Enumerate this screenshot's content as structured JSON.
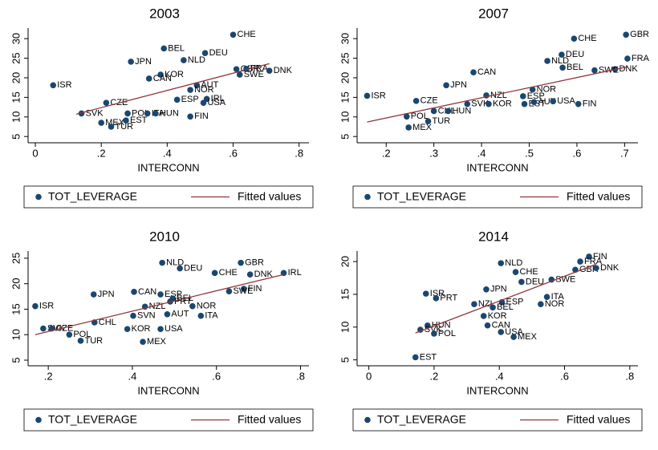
{
  "chart_data": [
    {
      "type": "scatter",
      "title": "2003",
      "xlabel": "INTERCONN",
      "xlim": [
        -0.022,
        0.83
      ],
      "ylim": [
        3.4,
        32.7
      ],
      "xticks": [
        0,
        {
          "value": 0.2,
          "label": ".2"
        },
        {
          "value": 0.4,
          "label": ".4"
        },
        {
          "value": 0.6,
          "label": ".6"
        },
        {
          "value": 0.8,
          "label": ".8"
        }
      ],
      "yticks": [
        5,
        10,
        15,
        20,
        25,
        30
      ],
      "series": [
        {
          "name": "TOT_LEVERAGE",
          "color": "#1a476f",
          "labels": [
            "CHE",
            "BEL",
            "DEU",
            "NLD",
            "JPN",
            "GBR",
            "FRA",
            "DNK",
            "SWE",
            "ISR",
            "KOR",
            "CAN",
            "AUT",
            "NOR",
            "CZE",
            "ESP",
            "IRL",
            "USA",
            "SVK",
            "POL",
            "ITA",
            "HUN",
            "EST",
            "MEX",
            "TUR",
            "FIN"
          ],
          "x": [
            0.6,
            0.39,
            0.515,
            0.45,
            0.29,
            0.61,
            0.64,
            0.71,
            0.62,
            0.054,
            0.38,
            0.345,
            0.49,
            0.47,
            0.215,
            0.43,
            0.52,
            0.51,
            0.14,
            0.28,
            0.34,
            0.365,
            0.275,
            0.2,
            0.23,
            0.47
          ],
          "values": [
            31.0,
            27.5,
            26.3,
            24.5,
            24.1,
            22.2,
            22.3,
            21.8,
            20.8,
            18.1,
            20.8,
            19.8,
            18.1,
            16.9,
            13.6,
            14.4,
            14.6,
            13.6,
            10.9,
            10.9,
            10.9,
            10.9,
            9.1,
            8.5,
            7.5,
            10.1
          ]
        },
        {
          "name": "Fitted values",
          "color": "#90353b",
          "x": [
            0.124,
            0.71
          ],
          "values": [
            10.7,
            23.6
          ]
        }
      ]
    },
    {
      "type": "scatter",
      "title": "2007",
      "xlabel": "INTERCONN",
      "xlim": [
        0.139,
        0.728
      ],
      "ylim": [
        3.4,
        32.7
      ],
      "xticks": [
        {
          "value": 0.2,
          "label": ".2"
        },
        {
          "value": 0.3,
          "label": ".3"
        },
        {
          "value": 0.4,
          "label": ".4"
        },
        {
          "value": 0.5,
          "label": ".5"
        },
        {
          "value": 0.6,
          "label": ".6"
        },
        {
          "value": 0.7,
          "label": ".7"
        }
      ],
      "yticks": [
        5,
        10,
        15,
        20,
        25,
        30
      ],
      "series": [
        {
          "name": "TOT_LEVERAGE",
          "color": "#1a476f",
          "labels": [
            "GBR",
            "CHE",
            "DEU",
            "NLD",
            "BEL",
            "FRA",
            "DNK",
            "SWE",
            "CAN",
            "JPN",
            "ISR",
            "NOR",
            "NZL",
            "ESP",
            "CZE",
            "SVK",
            "KOR",
            "EST",
            "AUT",
            "USA",
            "FIN",
            "CHL",
            "HUN",
            "POL",
            "TUR",
            "MEX"
          ],
          "x": [
            0.703,
            0.594,
            0.568,
            0.538,
            0.57,
            0.706,
            0.68,
            0.637,
            0.383,
            0.326,
            0.16,
            0.507,
            0.41,
            0.487,
            0.263,
            0.37,
            0.415,
            0.49,
            0.51,
            0.55,
            0.603,
            0.3,
            0.33,
            0.243,
            0.288,
            0.247
          ],
          "values": [
            31.0,
            30.0,
            25.9,
            24.3,
            22.6,
            24.9,
            22.2,
            21.9,
            21.4,
            18.1,
            15.4,
            17.0,
            15.5,
            15.3,
            14.1,
            13.3,
            13.3,
            13.3,
            13.8,
            14.0,
            13.3,
            11.5,
            11.5,
            10.1,
            8.9,
            7.3
          ]
        },
        {
          "name": "Fitted values",
          "color": "#90353b",
          "x": [
            0.16,
            0.706
          ],
          "values": [
            8.7,
            22.8
          ]
        }
      ]
    },
    {
      "type": "scatter",
      "title": "2010",
      "xlabel": "INTERCONN",
      "xlim": [
        0.152,
        0.82
      ],
      "ylim": [
        3.9,
        26.4
      ],
      "xticks": [
        {
          "value": 0.2,
          "label": ".2"
        },
        {
          "value": 0.4,
          "label": ".4"
        },
        {
          "value": 0.6,
          "label": ".6"
        },
        {
          "value": 0.8,
          "label": ".8"
        }
      ],
      "yticks": [
        5,
        10,
        15,
        20,
        25
      ],
      "series": [
        {
          "name": "TOT_LEVERAGE",
          "color": "#1a476f",
          "labels": [
            "NLD",
            "GBR",
            "DEU",
            "CHE",
            "DNK",
            "IRL",
            "FIN",
            "SWE",
            "ISR",
            "JPN",
            "CAN",
            "ESP",
            "BEL",
            "PRT",
            "NZL",
            "NOR",
            "SVN",
            "AUT",
            "ITA",
            "CHL",
            "SVK",
            "CZE",
            "POL",
            "KOR",
            "USA",
            "TUR",
            "MEX"
          ],
          "x": [
            0.471,
            0.658,
            0.513,
            0.596,
            0.68,
            0.76,
            0.665,
            0.63,
            0.169,
            0.308,
            0.404,
            0.467,
            0.496,
            0.49,
            0.43,
            0.543,
            0.402,
            0.483,
            0.563,
            0.31,
            0.188,
            0.208,
            0.25,
            0.388,
            0.467,
            0.277,
            0.425
          ],
          "values": [
            24.1,
            24.1,
            23.0,
            22.1,
            21.8,
            22.1,
            19.0,
            18.5,
            15.6,
            17.9,
            18.4,
            17.9,
            17.1,
            16.5,
            15.5,
            15.6,
            13.7,
            14.0,
            13.7,
            12.4,
            11.2,
            11.2,
            10.0,
            11.1,
            11.1,
            8.8,
            8.6
          ]
        },
        {
          "name": "Fitted values",
          "color": "#90353b",
          "x": [
            0.169,
            0.76
          ],
          "values": [
            10.0,
            21.8
          ]
        }
      ]
    },
    {
      "type": "scatter",
      "title": "2014",
      "xlabel": "INTERCONN",
      "xlim": [
        -0.036,
        0.825
      ],
      "ylim": [
        4.1,
        21.6
      ],
      "xticks": [
        0,
        {
          "value": 0.2,
          "label": ".2"
        },
        {
          "value": 0.4,
          "label": ".4"
        },
        {
          "value": 0.6,
          "label": ".6"
        },
        {
          "value": 0.8,
          "label": ".8"
        }
      ],
      "yticks": [
        5,
        10,
        15,
        20
      ],
      "series": [
        {
          "name": "TOT_LEVERAGE",
          "color": "#1a476f",
          "labels": [
            "FIN",
            "FRA",
            "GBR",
            "DNK",
            "NLD",
            "CHE",
            "DEU",
            "SWE",
            "JPN",
            "ISR",
            "PRT",
            "NZL",
            "ESP",
            "BEL",
            "ITA",
            "NOR",
            "KOR",
            "CAN",
            "HUN",
            "SVK",
            "POL",
            "USA",
            "MEX",
            "EST"
          ],
          "x": [
            0.675,
            0.648,
            0.633,
            0.697,
            0.405,
            0.45,
            0.468,
            0.56,
            0.36,
            0.175,
            0.206,
            0.323,
            0.408,
            0.38,
            0.546,
            0.527,
            0.352,
            0.364,
            0.18,
            0.158,
            0.2,
            0.405,
            0.444,
            0.143
          ],
          "values": [
            20.75,
            20.0,
            18.75,
            19.0,
            19.75,
            18.4,
            16.9,
            17.25,
            15.75,
            15.1,
            14.4,
            13.5,
            13.8,
            13.0,
            14.6,
            13.5,
            11.7,
            10.25,
            10.25,
            9.6,
            9.0,
            9.25,
            8.5,
            5.4
          ]
        },
        {
          "name": "Fitted values",
          "color": "#90353b",
          "x": [
            0.143,
            0.697
          ],
          "values": [
            9.1,
            19.6
          ]
        }
      ]
    }
  ]
}
